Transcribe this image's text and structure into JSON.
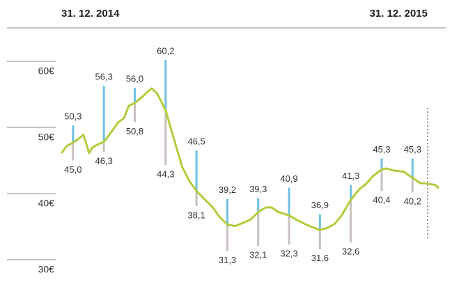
{
  "chart_data": {
    "type": "hilo",
    "start_label": "31. 12. 2014",
    "end_label": "31. 12. 2015",
    "categories": [
      null,
      null,
      null,
      null,
      null,
      null,
      null,
      null,
      null,
      null,
      null,
      null
    ],
    "high": {
      "color": "#6ec1e4",
      "values": [
        50.3,
        56.3,
        56.0,
        60.2,
        46.5,
        39.2,
        39.3,
        40.9,
        36.9,
        41.3,
        45.3,
        45.3
      ],
      "value_labels": [
        "50,3",
        "56,3",
        "56,0",
        "60,2",
        "46,5",
        "39,2",
        "39,3",
        "40,9",
        "36,9",
        "41,3",
        "45,3",
        "45,3"
      ]
    },
    "low": {
      "color": "#c9c0bb",
      "values": [
        45.0,
        46.3,
        50.8,
        44.3,
        38.1,
        31.3,
        32.1,
        32.3,
        31.6,
        32.6,
        40.4,
        40.2
      ],
      "value_labels": [
        "45,0",
        "46,3",
        "50,8",
        "44,3",
        "38,1",
        "31,3",
        "32,1",
        "32,3",
        "31,6",
        "32,6",
        "40,4",
        "40,2"
      ]
    },
    "line": {
      "color": "#b2cc3a",
      "x": [
        -0.38,
        -0.2,
        0,
        0.16,
        0.34,
        0.52,
        0.63,
        0.84,
        1.02,
        1.24,
        1.47,
        1.65,
        1.81,
        2.01,
        2.26,
        2.42,
        2.55,
        2.73,
        3.0,
        3.27,
        3.54,
        3.77,
        4.02,
        4.27,
        4.51,
        4.76,
        5.01,
        5.26,
        5.53,
        5.76,
        6.0,
        6.25,
        6.43,
        6.66,
        7.0,
        7.22,
        7.56,
        7.99,
        8.24,
        8.47,
        8.69,
        8.98,
        9.26,
        9.48,
        9.71,
        9.98,
        10.16,
        10.38,
        10.72,
        10.99,
        11.24,
        11.49,
        11.74,
        11.85
      ],
      "values": [
        46.1,
        47.2,
        47.7,
        48.2,
        48.9,
        46.1,
        47.0,
        47.5,
        47.9,
        49.3,
        50.8,
        51.4,
        53.3,
        53.7,
        54.7,
        55.4,
        55.9,
        55.1,
        52.6,
        48.2,
        44.0,
        41.9,
        40.3,
        39.1,
        38.0,
        36.4,
        35.3,
        35.1,
        35.6,
        36.1,
        37.2,
        37.9,
        37.9,
        37.2,
        36.7,
        36.1,
        35.3,
        34.5,
        34.8,
        35.4,
        36.6,
        38.9,
        40.6,
        41.4,
        42.6,
        43.6,
        43.8,
        43.5,
        43.3,
        42.4,
        41.6,
        41.5,
        41.3,
        40.8
      ]
    },
    "xlim": [
      -0.38,
      11.85
    ],
    "ylim": [
      30,
      60
    ],
    "yticks": [
      {
        "value": 60,
        "label": "60€"
      },
      {
        "value": 50,
        "label": "50€"
      },
      {
        "value": 40,
        "label": "40€"
      },
      {
        "value": 30,
        "label": "30€"
      }
    ]
  }
}
